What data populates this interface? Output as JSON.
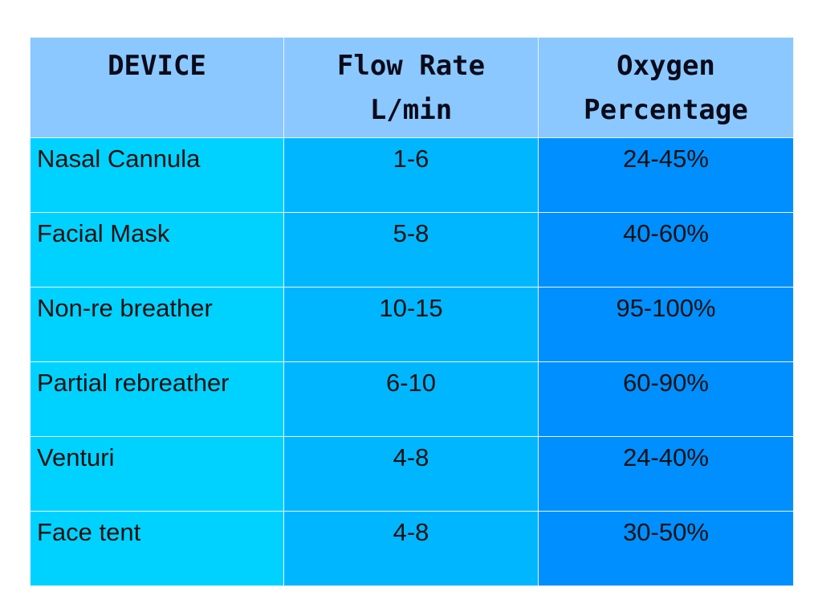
{
  "table": {
    "headers": [
      [
        "DEVICE"
      ],
      [
        "Flow Rate",
        "L/min"
      ],
      [
        "Oxygen",
        "Percentage"
      ]
    ],
    "rows": [
      {
        "device": "Nasal Cannula",
        "flow": "1-6",
        "oxygen": "24-45%"
      },
      {
        "device": "Facial Mask",
        "flow": "5-8",
        "oxygen": "40-60%"
      },
      {
        "device": "Non-re breather",
        "flow": "10-15",
        "oxygen": "95-100%"
      },
      {
        "device": "Partial rebreather",
        "flow": "6-10",
        "oxygen": "60-90%"
      },
      {
        "device": "Venturi",
        "flow": "4-8",
        "oxygen": "24-40%"
      },
      {
        "device": "Face tent",
        "flow": "4-8",
        "oxygen": "30-50%"
      }
    ]
  },
  "colors": {
    "header": "#8ac8ff",
    "device_col": "#00d2ff",
    "flow_col": "#00b6ff",
    "oxygen_col": "#008fff"
  }
}
